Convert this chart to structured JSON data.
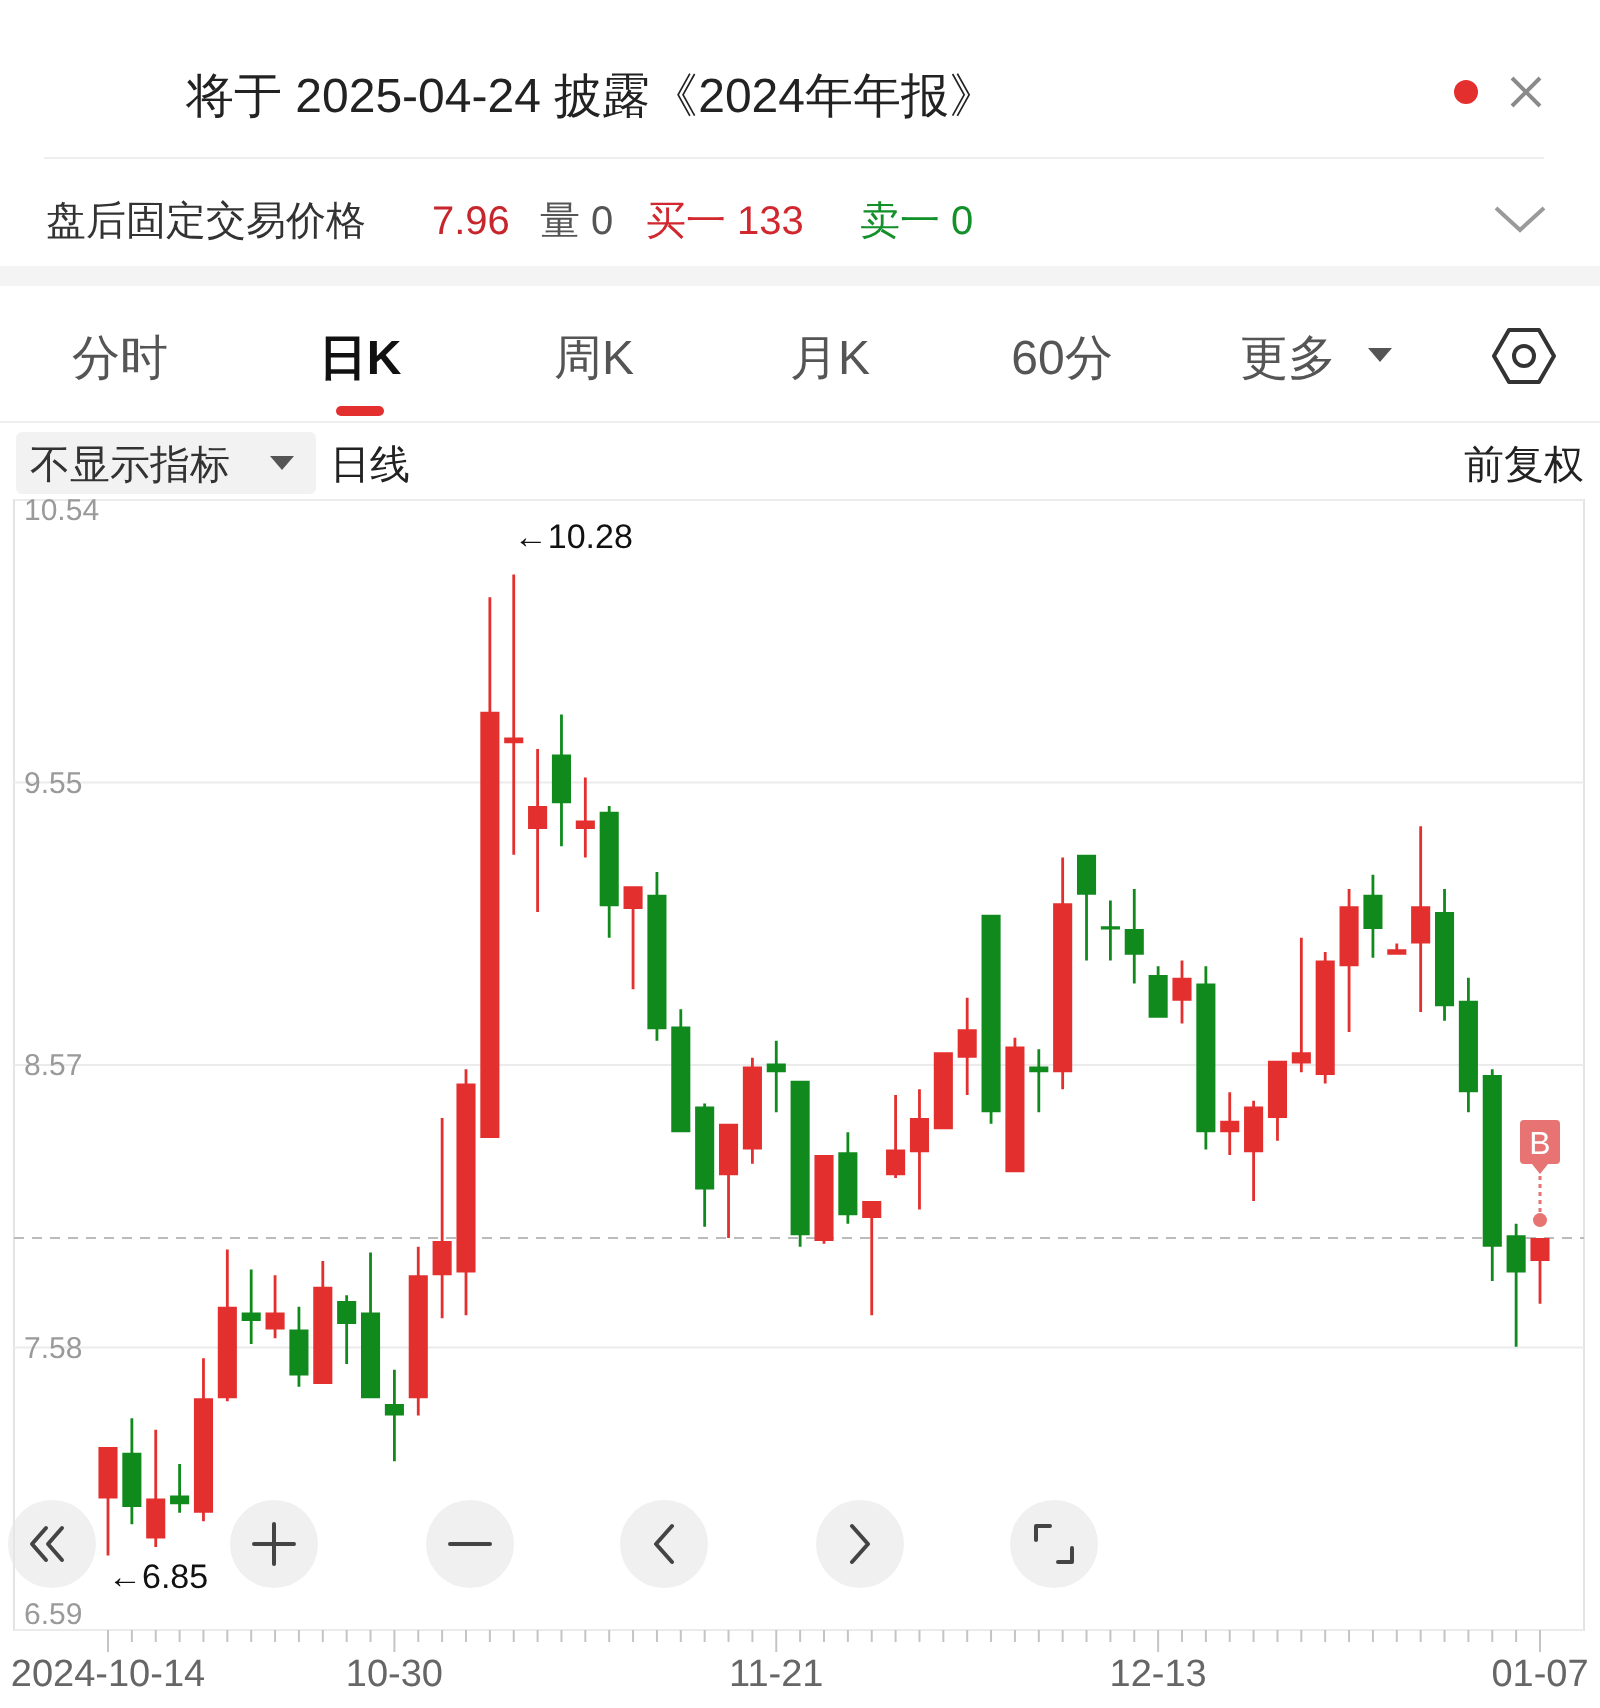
{
  "chart_data": {
    "type": "candlestick",
    "categories": [
      "2024-10-14",
      null,
      null,
      null,
      null,
      null,
      null,
      null,
      null,
      null,
      null,
      null,
      "10-30",
      null,
      null,
      null,
      null,
      null,
      null,
      null,
      null,
      null,
      null,
      null,
      null,
      null,
      null,
      null,
      "11-21",
      null,
      null,
      null,
      null,
      null,
      null,
      null,
      null,
      null,
      null,
      null,
      null,
      null,
      null,
      null,
      "12-13",
      null,
      null,
      null,
      null,
      null,
      null,
      null,
      null,
      null,
      null,
      null,
      null,
      null,
      null,
      null,
      "01-07"
    ],
    "ohlc": [
      [
        7.05,
        7.23,
        6.85,
        7.23
      ],
      [
        7.21,
        7.33,
        6.96,
        7.02
      ],
      [
        6.91,
        7.29,
        6.88,
        7.05
      ],
      [
        7.06,
        7.17,
        7.0,
        7.03
      ],
      [
        7.0,
        7.54,
        6.97,
        7.4
      ],
      [
        7.4,
        7.92,
        7.39,
        7.72
      ],
      [
        7.7,
        7.85,
        7.59,
        7.67
      ],
      [
        7.64,
        7.83,
        7.61,
        7.7
      ],
      [
        7.64,
        7.72,
        7.44,
        7.48
      ],
      [
        7.45,
        7.88,
        7.45,
        7.79
      ],
      [
        7.74,
        7.76,
        7.52,
        7.66
      ],
      [
        7.7,
        7.91,
        7.4,
        7.4
      ],
      [
        7.38,
        7.5,
        7.18,
        7.34
      ],
      [
        7.4,
        7.93,
        7.34,
        7.83
      ],
      [
        7.83,
        8.38,
        7.68,
        7.95
      ],
      [
        7.84,
        8.55,
        7.69,
        8.5
      ],
      [
        8.31,
        10.2,
        8.31,
        9.8
      ],
      [
        9.69,
        10.28,
        9.3,
        9.71
      ],
      [
        9.39,
        9.67,
        9.1,
        9.47
      ],
      [
        9.65,
        9.79,
        9.33,
        9.48
      ],
      [
        9.39,
        9.57,
        9.29,
        9.42
      ],
      [
        9.45,
        9.47,
        9.01,
        9.12
      ],
      [
        9.11,
        9.19,
        8.83,
        9.19
      ],
      [
        9.16,
        9.24,
        8.65,
        8.69
      ],
      [
        8.7,
        8.76,
        8.33,
        8.33
      ],
      [
        8.42,
        8.43,
        8.0,
        8.13
      ],
      [
        8.18,
        8.36,
        7.96,
        8.36
      ],
      [
        8.27,
        8.59,
        8.22,
        8.56
      ],
      [
        8.57,
        8.65,
        8.4,
        8.54
      ],
      [
        8.51,
        8.51,
        7.93,
        7.97
      ],
      [
        7.95,
        8.25,
        7.94,
        8.25
      ],
      [
        8.26,
        8.33,
        8.01,
        8.04
      ],
      [
        8.03,
        8.09,
        7.69,
        8.09
      ],
      [
        8.18,
        8.46,
        8.17,
        8.27
      ],
      [
        8.26,
        8.48,
        8.06,
        8.38
      ],
      [
        8.34,
        8.61,
        8.34,
        8.61
      ],
      [
        8.59,
        8.8,
        8.46,
        8.69
      ],
      [
        9.09,
        9.09,
        8.36,
        8.4
      ],
      [
        8.19,
        8.66,
        8.19,
        8.63
      ],
      [
        8.56,
        8.62,
        8.4,
        8.54
      ],
      [
        8.54,
        9.29,
        8.48,
        9.13
      ],
      [
        9.3,
        9.3,
        8.93,
        9.16
      ],
      [
        9.05,
        9.14,
        8.93,
        9.04
      ],
      [
        9.04,
        9.18,
        8.85,
        8.95
      ],
      [
        8.88,
        8.91,
        8.73,
        8.73
      ],
      [
        8.79,
        8.93,
        8.71,
        8.87
      ],
      [
        8.85,
        8.91,
        8.27,
        8.33
      ],
      [
        8.33,
        8.47,
        8.25,
        8.37
      ],
      [
        8.26,
        8.44,
        8.09,
        8.42
      ],
      [
        8.38,
        8.58,
        8.3,
        8.58
      ],
      [
        8.57,
        9.01,
        8.54,
        8.61
      ],
      [
        8.53,
        8.96,
        8.5,
        8.93
      ],
      [
        8.91,
        9.18,
        8.68,
        9.12
      ],
      [
        9.16,
        9.23,
        8.94,
        9.04
      ],
      [
        8.95,
        8.99,
        8.95,
        8.97
      ],
      [
        8.99,
        9.4,
        8.75,
        9.12
      ],
      [
        9.1,
        9.18,
        8.72,
        8.77
      ],
      [
        8.79,
        8.87,
        8.4,
        8.47
      ],
      [
        8.53,
        8.55,
        7.81,
        7.93
      ],
      [
        7.97,
        8.01,
        7.58,
        7.84
      ],
      [
        7.88,
        7.96,
        7.73,
        7.96
      ]
    ],
    "colors": [
      "#e3302f",
      "#118a1d",
      "#e3302f",
      "#118a1d",
      "#e3302f",
      "#e3302f",
      "#118a1d",
      "#e3302f",
      "#118a1d",
      "#e3302f",
      "#118a1d",
      "#118a1d",
      "#118a1d",
      "#e3302f",
      "#e3302f",
      "#e3302f",
      "#e3302f",
      "#e3302f",
      "#e3302f",
      "#118a1d",
      "#e3302f",
      "#118a1d",
      "#e3302f",
      "#118a1d",
      "#118a1d",
      "#118a1d",
      "#e3302f",
      "#e3302f",
      "#118a1d",
      "#118a1d",
      "#e3302f",
      "#118a1d",
      "#e3302f",
      "#e3302f",
      "#e3302f",
      "#e3302f",
      "#e3302f",
      "#118a1d",
      "#e3302f",
      "#118a1d",
      "#e3302f",
      "#118a1d",
      "#118a1d",
      "#118a1d",
      "#118a1d",
      "#e3302f",
      "#118a1d",
      "#e3302f",
      "#e3302f",
      "#e3302f",
      "#e3302f",
      "#e3302f",
      "#e3302f",
      "#118a1d",
      "#e3302f",
      "#e3302f",
      "#118a1d",
      "#118a1d",
      "#118a1d",
      "#118a1d",
      "#e3302f"
    ],
    "ylim": [
      6.59,
      10.54
    ],
    "yticks": [
      6.59,
      {
        "value": 7.5775,
        "label": "7.58"
      },
      {
        "value": 8.565,
        "label": "8.57"
      },
      {
        "value": 9.5525,
        "label": "9.55"
      },
      10.54
    ],
    "grid": "y",
    "ref_lines": [
      {
        "axis": "y",
        "value": 7.96,
        "line_style": "dashed",
        "color": "#bbbbbb"
      }
    ],
    "annotations": [
      "将于 2025-04-24 披露《2024年年报》",
      "盘后固定交易价格",
      "7.96",
      "量 0",
      "买一 133",
      "卖一 0",
      "分时",
      "日K",
      "周K",
      "月K",
      "60分",
      "更多",
      "不显示指标",
      "日线",
      "前复权",
      "←10.28",
      {
        "text": "←6.85",
        "x": "2024-10-14",
        "y": 6.85
      },
      "B"
    ]
  }
}
